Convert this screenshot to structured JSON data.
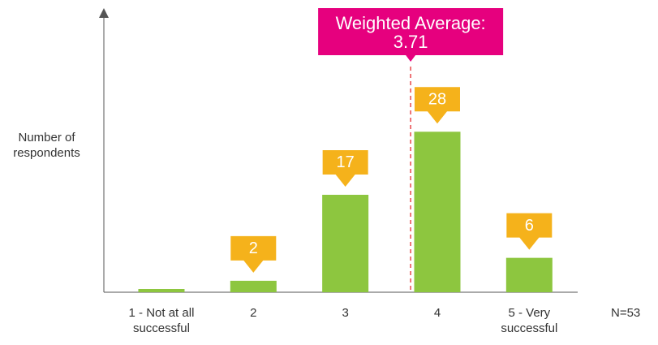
{
  "chart_data": {
    "type": "bar",
    "y_label": "Number of respondents",
    "categories": [
      "1 - Not at all successful",
      "2",
      "3",
      "4",
      "5 - Very successful"
    ],
    "values": [
      0,
      2,
      17,
      28,
      6
    ],
    "color": "#8dc63f",
    "label_color": "#f5b21b",
    "ylim": [
      0,
      49
    ],
    "annotation": {
      "label": "Weighted Average:",
      "value": 3.71,
      "color": "#e6007e"
    },
    "note": "N=53"
  }
}
